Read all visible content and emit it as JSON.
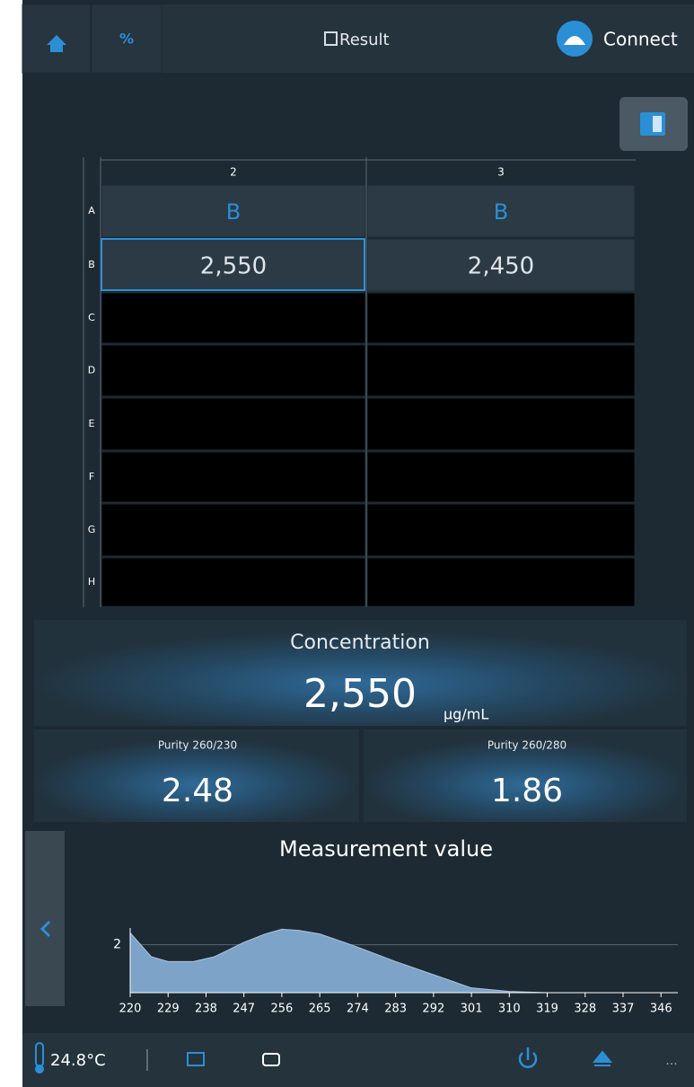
{
  "header": {
    "title": "Result",
    "connect": "Connect"
  },
  "plate": {
    "columns": [
      "2",
      "3"
    ],
    "rows": [
      "A",
      "B",
      "C",
      "D",
      "E",
      "F",
      "G",
      "H"
    ],
    "cells": [
      [
        "B",
        "B"
      ],
      [
        "2,550",
        "2,450"
      ]
    ]
  },
  "concentration": {
    "label": "Concentration",
    "value": "2,550",
    "unit": "µg/mL"
  },
  "purity": [
    {
      "label": "Purity 260/230",
      "value": "2.48"
    },
    {
      "label": "Purity 260/280",
      "value": "1.86"
    }
  ],
  "chart_data": {
    "type": "area",
    "title": "Measurement value",
    "x": [
      220,
      225,
      229,
      235,
      240,
      247,
      252,
      256,
      260,
      265,
      270,
      274,
      283,
      292,
      301,
      310,
      319,
      328,
      337,
      346,
      350
    ],
    "values": [
      2.5,
      1.5,
      1.3,
      1.3,
      1.5,
      2.1,
      2.45,
      2.65,
      2.6,
      2.45,
      2.15,
      1.9,
      1.3,
      0.75,
      0.2,
      0.05,
      0,
      0,
      0,
      0,
      0
    ],
    "color": "#7ea3c8",
    "xlim": [
      220,
      350
    ],
    "ylim": [
      0,
      2.7
    ],
    "xticks": [
      220,
      229,
      238,
      247,
      256,
      265,
      274,
      283,
      292,
      301,
      310,
      319,
      328,
      337,
      346
    ],
    "yticks": [
      2
    ],
    "grid": true
  },
  "footer": {
    "temperature": "24.8°C",
    "more": "..."
  }
}
